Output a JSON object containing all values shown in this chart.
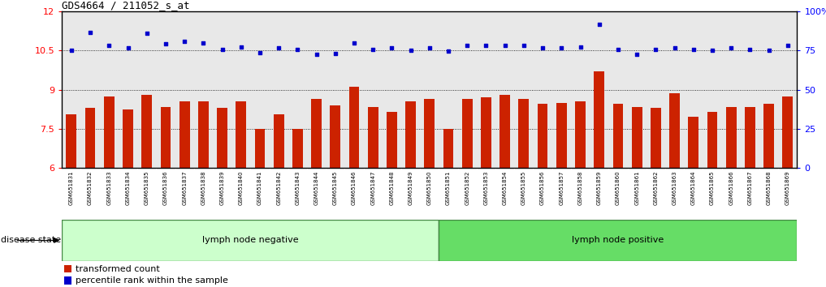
{
  "title": "GDS4664 / 211052_s_at",
  "samples": [
    "GSM651831",
    "GSM651832",
    "GSM651833",
    "GSM651834",
    "GSM651835",
    "GSM651836",
    "GSM651837",
    "GSM651838",
    "GSM651839",
    "GSM651840",
    "GSM651841",
    "GSM651842",
    "GSM651843",
    "GSM651844",
    "GSM651845",
    "GSM651846",
    "GSM651847",
    "GSM651848",
    "GSM651849",
    "GSM651850",
    "GSM651851",
    "GSM651852",
    "GSM651853",
    "GSM651854",
    "GSM651855",
    "GSM651856",
    "GSM651857",
    "GSM651858",
    "GSM651859",
    "GSM651860",
    "GSM651861",
    "GSM651862",
    "GSM651863",
    "GSM651864",
    "GSM651865",
    "GSM651866",
    "GSM651867",
    "GSM651868",
    "GSM651869"
  ],
  "bar_values": [
    8.05,
    8.3,
    8.75,
    8.25,
    8.8,
    8.35,
    8.55,
    8.55,
    8.3,
    8.55,
    7.5,
    8.05,
    7.5,
    8.65,
    8.4,
    9.1,
    8.35,
    8.15,
    8.55,
    8.65,
    7.5,
    8.65,
    8.7,
    8.8,
    8.65,
    8.45,
    8.5,
    8.55,
    9.7,
    8.45,
    8.35,
    8.3,
    8.85,
    7.95,
    8.15,
    8.35,
    8.35,
    8.45,
    8.75
  ],
  "dot_values": [
    10.5,
    11.2,
    10.7,
    10.6,
    11.15,
    10.75,
    10.85,
    10.8,
    10.55,
    10.65,
    10.42,
    10.6,
    10.55,
    10.35,
    10.4,
    10.8,
    10.55,
    10.6,
    10.5,
    10.6,
    10.48,
    10.7,
    10.7,
    10.7,
    10.7,
    10.6,
    10.6,
    10.65,
    11.5,
    10.55,
    10.35,
    10.55,
    10.6,
    10.55,
    10.5,
    10.6,
    10.55,
    10.5,
    10.7
  ],
  "bar_color": "#cc2200",
  "dot_color": "#0000cc",
  "ylim_left": [
    6,
    12
  ],
  "ylim_right": [
    0,
    100
  ],
  "yticks_left": [
    6,
    7.5,
    9,
    10.5,
    12
  ],
  "yticks_right": [
    0,
    25,
    50,
    75,
    100
  ],
  "group1_count": 20,
  "group1_label": "lymph node negative",
  "group2_label": "lymph node positive",
  "disease_state_label": "disease state",
  "legend_bar": "transformed count",
  "legend_dot": "percentile rank within the sample",
  "group1_color": "#ccffcc",
  "group2_color": "#66dd66",
  "xticklabel_bg": "#d0d0d0",
  "plot_bg": "#e8e8e8"
}
